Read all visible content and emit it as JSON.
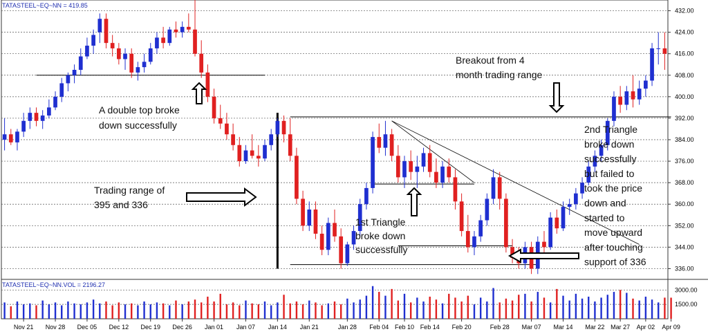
{
  "chart_data": {
    "type": "candlestick",
    "price_header": "TATASTEEL~EQ~NN = 419.85",
    "volume_header": "TATASTEEL~EQ~NN.VOL = 2196.27",
    "price_ticks": [
      "432.00",
      "424.00",
      "416.00",
      "408.00",
      "400.00",
      "392.00",
      "384.00",
      "376.00",
      "368.00",
      "360.00",
      "352.00",
      "344.00",
      "336.00"
    ],
    "price_tick_values": [
      432,
      424,
      416,
      408,
      400,
      392,
      384,
      376,
      368,
      360,
      352,
      344,
      336
    ],
    "volume_ticks": [
      "3000.00",
      "1500.00"
    ],
    "volume_tick_values": [
      3000,
      1500
    ],
    "ylim": [
      332,
      436
    ],
    "vol_ylim": [
      0,
      4100
    ],
    "x_ticks": [
      {
        "label": "Nov 21",
        "index": 3
      },
      {
        "label": "Nov 28",
        "index": 8
      },
      {
        "label": "Dec 05",
        "index": 13
      },
      {
        "label": "Dec 12",
        "index": 18
      },
      {
        "label": "Dec 19",
        "index": 23
      },
      {
        "label": "Dec 26",
        "index": 28
      },
      {
        "label": "Jan 01",
        "index": 33
      },
      {
        "label": "Jan 07",
        "index": 38
      },
      {
        "label": "Jan 14",
        "index": 43
      },
      {
        "label": "Jan 21",
        "index": 48
      },
      {
        "label": "Jan 28",
        "index": 54
      },
      {
        "label": "Feb 04",
        "index": 59
      },
      {
        "label": "Feb 10",
        "index": 63
      },
      {
        "label": "Feb 14",
        "index": 67
      },
      {
        "label": "Feb 20",
        "index": 72
      },
      {
        "label": "Feb 28",
        "index": 78
      },
      {
        "label": "Mar 07",
        "index": 83
      },
      {
        "label": "Mar 14",
        "index": 88
      },
      {
        "label": "Mar 22",
        "index": 93
      },
      {
        "label": "Mar 27",
        "index": 97
      },
      {
        "label": "Apr 02",
        "index": 101
      },
      {
        "label": "Apr 09",
        "index": 105
      }
    ],
    "candles": [
      {
        "o": 384,
        "h": 392,
        "l": 380,
        "c": 386
      },
      {
        "o": 386,
        "h": 388,
        "l": 382,
        "c": 383
      },
      {
        "o": 383,
        "h": 388,
        "l": 380,
        "c": 387
      },
      {
        "o": 387,
        "h": 394,
        "l": 385,
        "c": 391
      },
      {
        "o": 391,
        "h": 396,
        "l": 388,
        "c": 394
      },
      {
        "o": 394,
        "h": 396,
        "l": 389,
        "c": 391
      },
      {
        "o": 391,
        "h": 395,
        "l": 388,
        "c": 393
      },
      {
        "o": 393,
        "h": 399,
        "l": 392,
        "c": 396
      },
      {
        "o": 396,
        "h": 402,
        "l": 395,
        "c": 400
      },
      {
        "o": 400,
        "h": 407,
        "l": 398,
        "c": 405
      },
      {
        "o": 405,
        "h": 409,
        "l": 402,
        "c": 408
      },
      {
        "o": 408,
        "h": 412,
        "l": 405,
        "c": 410
      },
      {
        "o": 410,
        "h": 418,
        "l": 408,
        "c": 415
      },
      {
        "o": 415,
        "h": 422,
        "l": 414,
        "c": 419
      },
      {
        "o": 419,
        "h": 425,
        "l": 416,
        "c": 423
      },
      {
        "o": 424,
        "h": 431,
        "l": 420,
        "c": 429
      },
      {
        "o": 429,
        "h": 431,
        "l": 418,
        "c": 420
      },
      {
        "o": 420,
        "h": 423,
        "l": 415,
        "c": 418
      },
      {
        "o": 418,
        "h": 420,
        "l": 412,
        "c": 414
      },
      {
        "o": 414,
        "h": 418,
        "l": 410,
        "c": 416
      },
      {
        "o": 416,
        "h": 418,
        "l": 407,
        "c": 409
      },
      {
        "o": 409,
        "h": 413,
        "l": 406,
        "c": 411
      },
      {
        "o": 411,
        "h": 416,
        "l": 409,
        "c": 413
      },
      {
        "o": 413,
        "h": 420,
        "l": 412,
        "c": 418
      },
      {
        "o": 418,
        "h": 424,
        "l": 416,
        "c": 422
      },
      {
        "o": 422,
        "h": 426,
        "l": 418,
        "c": 420
      },
      {
        "o": 420,
        "h": 426,
        "l": 419,
        "c": 425
      },
      {
        "o": 425,
        "h": 428,
        "l": 422,
        "c": 424
      },
      {
        "o": 424,
        "h": 428,
        "l": 422,
        "c": 426
      },
      {
        "o": 426,
        "h": 431,
        "l": 424,
        "c": 425
      },
      {
        "o": 425,
        "h": 436,
        "l": 415,
        "c": 416
      },
      {
        "o": 416,
        "h": 421,
        "l": 407,
        "c": 409
      },
      {
        "o": 409,
        "h": 412,
        "l": 398,
        "c": 400
      },
      {
        "o": 400,
        "h": 403,
        "l": 390,
        "c": 392
      },
      {
        "o": 392,
        "h": 397,
        "l": 388,
        "c": 390
      },
      {
        "o": 390,
        "h": 394,
        "l": 384,
        "c": 386
      },
      {
        "o": 386,
        "h": 390,
        "l": 380,
        "c": 382
      },
      {
        "o": 382,
        "h": 385,
        "l": 374,
        "c": 376
      },
      {
        "o": 376,
        "h": 382,
        "l": 375,
        "c": 380
      },
      {
        "o": 380,
        "h": 386,
        "l": 377,
        "c": 378
      },
      {
        "o": 378,
        "h": 382,
        "l": 374,
        "c": 377
      },
      {
        "o": 377,
        "h": 384,
        "l": 376,
        "c": 382
      },
      {
        "o": 382,
        "h": 388,
        "l": 380,
        "c": 386
      },
      {
        "o": 386,
        "h": 392,
        "l": 385,
        "c": 391
      },
      {
        "o": 391,
        "h": 393,
        "l": 383,
        "c": 386
      },
      {
        "o": 386,
        "h": 392,
        "l": 376,
        "c": 378
      },
      {
        "o": 378,
        "h": 381,
        "l": 360,
        "c": 362
      },
      {
        "o": 362,
        "h": 365,
        "l": 350,
        "c": 352
      },
      {
        "o": 352,
        "h": 361,
        "l": 350,
        "c": 358
      },
      {
        "o": 358,
        "h": 361,
        "l": 347,
        "c": 349
      },
      {
        "o": 349,
        "h": 352,
        "l": 341,
        "c": 343
      },
      {
        "o": 343,
        "h": 355,
        "l": 341,
        "c": 353
      },
      {
        "o": 353,
        "h": 358,
        "l": 346,
        "c": 348
      },
      {
        "o": 348,
        "h": 351,
        "l": 336,
        "c": 338
      },
      {
        "o": 338,
        "h": 346,
        "l": 337,
        "c": 345
      },
      {
        "o": 345,
        "h": 352,
        "l": 343,
        "c": 350
      },
      {
        "o": 350,
        "h": 362,
        "l": 348,
        "c": 360
      },
      {
        "o": 360,
        "h": 368,
        "l": 358,
        "c": 366
      },
      {
        "o": 366,
        "h": 387,
        "l": 364,
        "c": 385
      },
      {
        "o": 385,
        "h": 390,
        "l": 379,
        "c": 381
      },
      {
        "o": 381,
        "h": 391,
        "l": 378,
        "c": 386
      },
      {
        "o": 386,
        "h": 388,
        "l": 376,
        "c": 378
      },
      {
        "o": 378,
        "h": 382,
        "l": 368,
        "c": 370
      },
      {
        "o": 370,
        "h": 378,
        "l": 366,
        "c": 376
      },
      {
        "o": 376,
        "h": 380,
        "l": 369,
        "c": 372
      },
      {
        "o": 372,
        "h": 378,
        "l": 366,
        "c": 374
      },
      {
        "o": 374,
        "h": 381,
        "l": 372,
        "c": 379
      },
      {
        "o": 379,
        "h": 382,
        "l": 370,
        "c": 372
      },
      {
        "o": 372,
        "h": 377,
        "l": 366,
        "c": 368
      },
      {
        "o": 368,
        "h": 376,
        "l": 366,
        "c": 374
      },
      {
        "o": 374,
        "h": 377,
        "l": 368,
        "c": 370
      },
      {
        "o": 370,
        "h": 373,
        "l": 358,
        "c": 361
      },
      {
        "o": 361,
        "h": 364,
        "l": 348,
        "c": 350
      },
      {
        "o": 350,
        "h": 356,
        "l": 342,
        "c": 344
      },
      {
        "o": 344,
        "h": 350,
        "l": 341,
        "c": 348
      },
      {
        "o": 348,
        "h": 356,
        "l": 346,
        "c": 354
      },
      {
        "o": 354,
        "h": 364,
        "l": 352,
        "c": 362
      },
      {
        "o": 362,
        "h": 373,
        "l": 360,
        "c": 370
      },
      {
        "o": 370,
        "h": 372,
        "l": 358,
        "c": 362
      },
      {
        "o": 362,
        "h": 364,
        "l": 342,
        "c": 344
      },
      {
        "o": 344,
        "h": 347,
        "l": 338,
        "c": 340
      },
      {
        "o": 340,
        "h": 344,
        "l": 336,
        "c": 338
      },
      {
        "o": 338,
        "h": 346,
        "l": 336,
        "c": 344
      },
      {
        "o": 344,
        "h": 346,
        "l": 334,
        "c": 336
      },
      {
        "o": 336,
        "h": 348,
        "l": 334,
        "c": 346
      },
      {
        "o": 346,
        "h": 350,
        "l": 342,
        "c": 344
      },
      {
        "o": 344,
        "h": 357,
        "l": 343,
        "c": 355
      },
      {
        "o": 355,
        "h": 358,
        "l": 349,
        "c": 351
      },
      {
        "o": 351,
        "h": 361,
        "l": 350,
        "c": 359
      },
      {
        "o": 359,
        "h": 362,
        "l": 356,
        "c": 360
      },
      {
        "o": 360,
        "h": 366,
        "l": 358,
        "c": 364
      },
      {
        "o": 364,
        "h": 370,
        "l": 362,
        "c": 368
      },
      {
        "o": 368,
        "h": 376,
        "l": 367,
        "c": 374
      },
      {
        "o": 374,
        "h": 380,
        "l": 372,
        "c": 378
      },
      {
        "o": 378,
        "h": 384,
        "l": 376,
        "c": 382
      },
      {
        "o": 382,
        "h": 392,
        "l": 380,
        "c": 391
      },
      {
        "o": 391,
        "h": 402,
        "l": 389,
        "c": 400
      },
      {
        "o": 400,
        "h": 404,
        "l": 394,
        "c": 397
      },
      {
        "o": 397,
        "h": 404,
        "l": 395,
        "c": 402
      },
      {
        "o": 402,
        "h": 408,
        "l": 396,
        "c": 399
      },
      {
        "o": 399,
        "h": 406,
        "l": 397,
        "c": 403
      },
      {
        "o": 403,
        "h": 408,
        "l": 400,
        "c": 406
      },
      {
        "o": 406,
        "h": 420,
        "l": 404,
        "c": 418
      },
      {
        "o": 418,
        "h": 424,
        "l": 412,
        "c": 418
      },
      {
        "o": 418,
        "h": 424,
        "l": 410,
        "c": 416
      }
    ],
    "volumes": [
      1700,
      1300,
      1800,
      1500,
      1600,
      1400,
      1900,
      1500,
      1700,
      1400,
      1800,
      1600,
      1500,
      1700,
      2000,
      1600,
      1800,
      1400,
      1700,
      1500,
      1600,
      1400,
      1800,
      1500,
      1700,
      1600,
      1400,
      1900,
      1500,
      1800,
      2000,
      1700,
      2300,
      1800,
      2600,
      1500,
      1700,
      1400,
      1900,
      1600,
      1500,
      1800,
      1400,
      1700,
      2500,
      1600,
      1800,
      1500,
      1900,
      1700,
      1400,
      1600,
      1800,
      1500,
      2100,
      1700,
      2000,
      2400,
      3400,
      2800,
      2400,
      3100,
      1900,
      2600,
      1700,
      2200,
      1800,
      2300,
      2000,
      1600,
      2600,
      2200,
      1800,
      2400,
      1500,
      2200,
      1800,
      3200,
      1700,
      2100,
      1900,
      2500,
      2600,
      1800,
      2800,
      2200,
      1700,
      3100,
      2400,
      1900,
      2600,
      2100,
      2300,
      1800,
      2200,
      2500,
      2800,
      3000,
      2700,
      2100,
      1900,
      2300,
      2000,
      1700,
      2200,
      2196
    ],
    "annotations": {
      "double_top": [
        "A double top broke",
        "down successfully"
      ],
      "trading_range": [
        "Trading range of",
        "395 and 336"
      ],
      "triangle_1": [
        "1st Triangle",
        "broke down",
        "successfully"
      ],
      "breakout": [
        "Breakout from 4",
        "month trading range"
      ],
      "triangle_2": [
        "2nd Triangle",
        "broke down",
        "successfully",
        "but failed to",
        "took the price",
        "down and",
        "started to",
        "move upward",
        "after touching",
        "support of 336"
      ]
    },
    "colors": {
      "up": "#1f2fd0",
      "down": "#e02020",
      "grid": "#555555",
      "header": "#1f2fb0"
    },
    "grid": true
  }
}
